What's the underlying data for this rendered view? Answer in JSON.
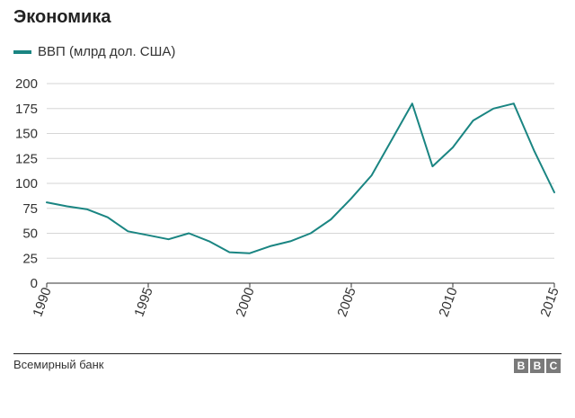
{
  "title": "Экономика",
  "legend": {
    "label": "ВВП (млрд дол. США)"
  },
  "colors": {
    "line": "#1a8582",
    "grid": "#d6d6d6",
    "axis": "#333333"
  },
  "footer": {
    "source": "Всемирный банк",
    "logo": [
      "B",
      "B",
      "C"
    ]
  },
  "chart_data": {
    "type": "line",
    "title": "Экономика",
    "xlabel": "",
    "ylabel": "",
    "xlim": [
      1990,
      2015
    ],
    "ylim": [
      0,
      200
    ],
    "xticks": [
      1990,
      1995,
      2000,
      2005,
      2010,
      2015
    ],
    "yticks": [
      0,
      25,
      50,
      75,
      100,
      125,
      150,
      175,
      200
    ],
    "grid": true,
    "legend_position": "top-left",
    "series": [
      {
        "name": "ВВП (млрд дол. США)",
        "x": [
          1990,
          1991,
          1992,
          1993,
          1994,
          1995,
          1996,
          1997,
          1998,
          1999,
          2000,
          2001,
          2002,
          2003,
          2004,
          2005,
          2006,
          2007,
          2008,
          2009,
          2010,
          2011,
          2012,
          2013,
          2014,
          2015
        ],
        "values": [
          81,
          77,
          74,
          66,
          52,
          48,
          44,
          50,
          42,
          31,
          30,
          37,
          42,
          50,
          64,
          85,
          108,
          144,
          180,
          117,
          136,
          163,
          175,
          180,
          133,
          91
        ]
      }
    ]
  }
}
